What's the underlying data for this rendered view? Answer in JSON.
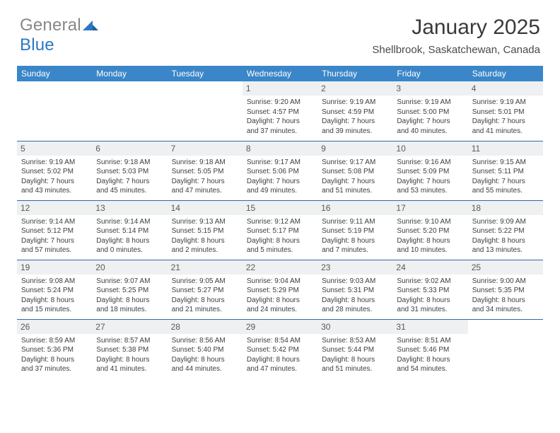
{
  "brand": {
    "part1": "General",
    "part2": "Blue",
    "color_gray": "#888888",
    "color_blue": "#2b78c2"
  },
  "calendar": {
    "title": "January 2025",
    "location": "Shellbrook, Saskatchewan, Canada",
    "header_bg": "#3a86c8",
    "header_fg": "#ffffff",
    "rule_color": "#2f6aa3",
    "daynum_bg": "#eef0f1",
    "background_color": "#ffffff",
    "text_color": "#3d3d3d",
    "day_headers": [
      "Sunday",
      "Monday",
      "Tuesday",
      "Wednesday",
      "Thursday",
      "Friday",
      "Saturday"
    ],
    "weeks": [
      [
        null,
        null,
        null,
        {
          "n": "1",
          "sr": "9:20 AM",
          "ss": "4:57 PM",
          "d1": "Daylight: 7 hours",
          "d2": "and 37 minutes."
        },
        {
          "n": "2",
          "sr": "9:19 AM",
          "ss": "4:59 PM",
          "d1": "Daylight: 7 hours",
          "d2": "and 39 minutes."
        },
        {
          "n": "3",
          "sr": "9:19 AM",
          "ss": "5:00 PM",
          "d1": "Daylight: 7 hours",
          "d2": "and 40 minutes."
        },
        {
          "n": "4",
          "sr": "9:19 AM",
          "ss": "5:01 PM",
          "d1": "Daylight: 7 hours",
          "d2": "and 41 minutes."
        }
      ],
      [
        {
          "n": "5",
          "sr": "9:19 AM",
          "ss": "5:02 PM",
          "d1": "Daylight: 7 hours",
          "d2": "and 43 minutes."
        },
        {
          "n": "6",
          "sr": "9:18 AM",
          "ss": "5:03 PM",
          "d1": "Daylight: 7 hours",
          "d2": "and 45 minutes."
        },
        {
          "n": "7",
          "sr": "9:18 AM",
          "ss": "5:05 PM",
          "d1": "Daylight: 7 hours",
          "d2": "and 47 minutes."
        },
        {
          "n": "8",
          "sr": "9:17 AM",
          "ss": "5:06 PM",
          "d1": "Daylight: 7 hours",
          "d2": "and 49 minutes."
        },
        {
          "n": "9",
          "sr": "9:17 AM",
          "ss": "5:08 PM",
          "d1": "Daylight: 7 hours",
          "d2": "and 51 minutes."
        },
        {
          "n": "10",
          "sr": "9:16 AM",
          "ss": "5:09 PM",
          "d1": "Daylight: 7 hours",
          "d2": "and 53 minutes."
        },
        {
          "n": "11",
          "sr": "9:15 AM",
          "ss": "5:11 PM",
          "d1": "Daylight: 7 hours",
          "d2": "and 55 minutes."
        }
      ],
      [
        {
          "n": "12",
          "sr": "9:14 AM",
          "ss": "5:12 PM",
          "d1": "Daylight: 7 hours",
          "d2": "and 57 minutes."
        },
        {
          "n": "13",
          "sr": "9:14 AM",
          "ss": "5:14 PM",
          "d1": "Daylight: 8 hours",
          "d2": "and 0 minutes."
        },
        {
          "n": "14",
          "sr": "9:13 AM",
          "ss": "5:15 PM",
          "d1": "Daylight: 8 hours",
          "d2": "and 2 minutes."
        },
        {
          "n": "15",
          "sr": "9:12 AM",
          "ss": "5:17 PM",
          "d1": "Daylight: 8 hours",
          "d2": "and 5 minutes."
        },
        {
          "n": "16",
          "sr": "9:11 AM",
          "ss": "5:19 PM",
          "d1": "Daylight: 8 hours",
          "d2": "and 7 minutes."
        },
        {
          "n": "17",
          "sr": "9:10 AM",
          "ss": "5:20 PM",
          "d1": "Daylight: 8 hours",
          "d2": "and 10 minutes."
        },
        {
          "n": "18",
          "sr": "9:09 AM",
          "ss": "5:22 PM",
          "d1": "Daylight: 8 hours",
          "d2": "and 13 minutes."
        }
      ],
      [
        {
          "n": "19",
          "sr": "9:08 AM",
          "ss": "5:24 PM",
          "d1": "Daylight: 8 hours",
          "d2": "and 15 minutes."
        },
        {
          "n": "20",
          "sr": "9:07 AM",
          "ss": "5:25 PM",
          "d1": "Daylight: 8 hours",
          "d2": "and 18 minutes."
        },
        {
          "n": "21",
          "sr": "9:05 AM",
          "ss": "5:27 PM",
          "d1": "Daylight: 8 hours",
          "d2": "and 21 minutes."
        },
        {
          "n": "22",
          "sr": "9:04 AM",
          "ss": "5:29 PM",
          "d1": "Daylight: 8 hours",
          "d2": "and 24 minutes."
        },
        {
          "n": "23",
          "sr": "9:03 AM",
          "ss": "5:31 PM",
          "d1": "Daylight: 8 hours",
          "d2": "and 28 minutes."
        },
        {
          "n": "24",
          "sr": "9:02 AM",
          "ss": "5:33 PM",
          "d1": "Daylight: 8 hours",
          "d2": "and 31 minutes."
        },
        {
          "n": "25",
          "sr": "9:00 AM",
          "ss": "5:35 PM",
          "d1": "Daylight: 8 hours",
          "d2": "and 34 minutes."
        }
      ],
      [
        {
          "n": "26",
          "sr": "8:59 AM",
          "ss": "5:36 PM",
          "d1": "Daylight: 8 hours",
          "d2": "and 37 minutes."
        },
        {
          "n": "27",
          "sr": "8:57 AM",
          "ss": "5:38 PM",
          "d1": "Daylight: 8 hours",
          "d2": "and 41 minutes."
        },
        {
          "n": "28",
          "sr": "8:56 AM",
          "ss": "5:40 PM",
          "d1": "Daylight: 8 hours",
          "d2": "and 44 minutes."
        },
        {
          "n": "29",
          "sr": "8:54 AM",
          "ss": "5:42 PM",
          "d1": "Daylight: 8 hours",
          "d2": "and 47 minutes."
        },
        {
          "n": "30",
          "sr": "8:53 AM",
          "ss": "5:44 PM",
          "d1": "Daylight: 8 hours",
          "d2": "and 51 minutes."
        },
        {
          "n": "31",
          "sr": "8:51 AM",
          "ss": "5:46 PM",
          "d1": "Daylight: 8 hours",
          "d2": "and 54 minutes."
        },
        null
      ]
    ],
    "labels": {
      "sunrise_prefix": "Sunrise: ",
      "sunset_prefix": "Sunset: "
    }
  }
}
